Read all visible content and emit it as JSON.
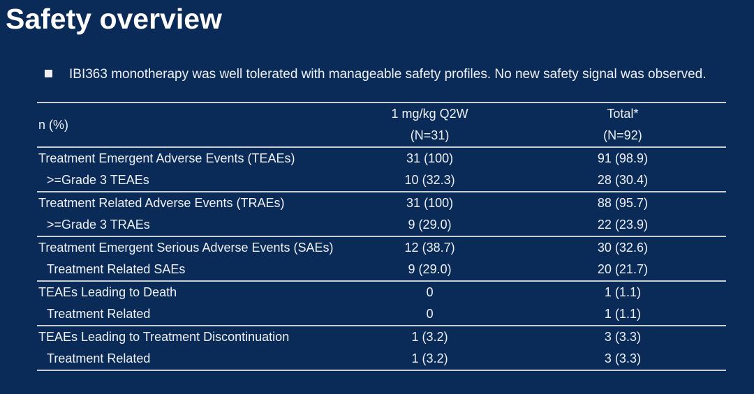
{
  "slide": {
    "title": "Safety overview",
    "bullet_text": "IBI363 monotherapy was well tolerated with manageable safety profiles. No new safety signal was observed."
  },
  "table": {
    "row_header_label": "n (%)",
    "columns": [
      {
        "line1": "1 mg/kg Q2W",
        "line2": "(N=31)"
      },
      {
        "line1": "Total*",
        "line2": "(N=92)"
      }
    ],
    "rows": [
      {
        "label": "Treatment Emergent Adverse Events (TEAEs)",
        "indent": false,
        "divider": false,
        "values": [
          "31 (100)",
          "91 (98.9)"
        ]
      },
      {
        "label": ">=Grade 3 TEAEs",
        "indent": true,
        "divider": true,
        "values": [
          "10 (32.3)",
          "28 (30.4)"
        ]
      },
      {
        "label": "Treatment Related Adverse Events (TRAEs)",
        "indent": false,
        "divider": false,
        "values": [
          "31 (100)",
          "88 (95.7)"
        ]
      },
      {
        "label": ">=Grade 3 TRAEs",
        "indent": true,
        "divider": true,
        "values": [
          "9 (29.0)",
          "22 (23.9)"
        ]
      },
      {
        "label": "Treatment Emergent Serious Adverse Events (SAEs)",
        "indent": false,
        "divider": false,
        "values": [
          "12 (38.7)",
          "30 (32.6)"
        ]
      },
      {
        "label": "Treatment Related SAEs",
        "indent": true,
        "divider": true,
        "values": [
          "9 (29.0)",
          "20 (21.7)"
        ]
      },
      {
        "label": "TEAEs Leading to Death",
        "indent": false,
        "divider": false,
        "values": [
          "0",
          "1 (1.1)"
        ]
      },
      {
        "label": "Treatment Related",
        "indent": true,
        "divider": true,
        "values": [
          "0",
          "1 (1.1)"
        ]
      },
      {
        "label": "TEAEs Leading to Treatment Discontinuation",
        "indent": false,
        "divider": false,
        "values": [
          "1 (3.2)",
          "3 (3.3)"
        ]
      },
      {
        "label": "Treatment Related",
        "indent": true,
        "divider": true,
        "values": [
          "1 (3.2)",
          "3 (3.3)"
        ]
      }
    ]
  },
  "colors": {
    "background": "#0a2a57",
    "text": "#eef1f5",
    "title": "#ffffff",
    "line": "#c9ced6"
  }
}
